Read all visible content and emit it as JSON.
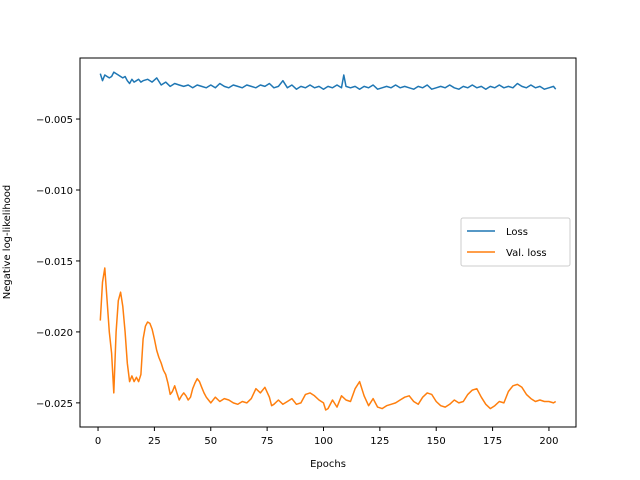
{
  "chart_data": {
    "type": "line",
    "title": "",
    "xlabel": "Epochs",
    "ylabel": "Negative log-likelihood",
    "xlim": [
      -8,
      212
    ],
    "ylim": [
      -0.0267,
      -0.0007
    ],
    "xticks": [
      0,
      25,
      50,
      75,
      100,
      125,
      150,
      175,
      200
    ],
    "yticks": [
      -0.005,
      -0.01,
      -0.015,
      -0.02,
      -0.025
    ],
    "ytick_labels": [
      "−0.005",
      "−0.010",
      "−0.015",
      "−0.020",
      "−0.025"
    ],
    "grid": false,
    "legend_position": "center-right",
    "series": [
      {
        "name": "Loss",
        "color": "#1f77b4",
        "x": [
          1,
          2,
          3,
          4,
          5,
          6,
          7,
          8,
          9,
          10,
          11,
          12,
          13,
          14,
          15,
          16,
          17,
          18,
          19,
          20,
          22,
          24,
          26,
          28,
          30,
          32,
          34,
          36,
          38,
          40,
          42,
          44,
          46,
          48,
          50,
          52,
          54,
          56,
          58,
          60,
          62,
          64,
          66,
          68,
          70,
          72,
          74,
          76,
          78,
          80,
          82,
          84,
          86,
          88,
          90,
          92,
          94,
          96,
          98,
          100,
          102,
          104,
          106,
          108,
          109,
          110,
          112,
          114,
          116,
          118,
          120,
          122,
          124,
          126,
          128,
          130,
          132,
          134,
          136,
          138,
          140,
          142,
          144,
          146,
          148,
          150,
          152,
          154,
          156,
          158,
          160,
          162,
          164,
          166,
          168,
          170,
          172,
          174,
          176,
          178,
          180,
          182,
          184,
          186,
          188,
          190,
          192,
          194,
          196,
          198,
          200,
          202,
          203
        ],
        "y": [
          -0.0018,
          -0.0023,
          -0.0019,
          -0.002,
          -0.0021,
          -0.002,
          -0.0017,
          -0.0018,
          -0.0019,
          -0.002,
          -0.0021,
          -0.002,
          -0.0023,
          -0.0025,
          -0.0022,
          -0.0024,
          -0.0023,
          -0.0022,
          -0.0024,
          -0.0023,
          -0.0022,
          -0.0024,
          -0.0021,
          -0.0026,
          -0.0024,
          -0.0027,
          -0.0025,
          -0.0026,
          -0.0027,
          -0.0026,
          -0.0028,
          -0.0026,
          -0.0027,
          -0.0028,
          -0.0026,
          -0.0028,
          -0.0025,
          -0.0027,
          -0.0028,
          -0.0026,
          -0.0027,
          -0.0028,
          -0.0026,
          -0.0027,
          -0.0028,
          -0.0026,
          -0.0027,
          -0.0025,
          -0.0028,
          -0.0027,
          -0.0023,
          -0.0028,
          -0.0026,
          -0.0029,
          -0.0027,
          -0.0028,
          -0.0026,
          -0.0028,
          -0.0027,
          -0.0029,
          -0.0027,
          -0.0028,
          -0.0026,
          -0.0028,
          -0.0019,
          -0.0027,
          -0.0028,
          -0.0027,
          -0.0029,
          -0.0027,
          -0.0028,
          -0.0026,
          -0.0029,
          -0.0028,
          -0.0027,
          -0.0028,
          -0.0026,
          -0.0028,
          -0.0027,
          -0.0028,
          -0.0029,
          -0.0027,
          -0.0028,
          -0.0026,
          -0.0029,
          -0.0028,
          -0.0027,
          -0.0028,
          -0.0026,
          -0.0028,
          -0.0029,
          -0.0027,
          -0.0028,
          -0.0026,
          -0.0028,
          -0.0027,
          -0.0029,
          -0.0027,
          -0.0028,
          -0.0026,
          -0.0028,
          -0.0027,
          -0.0028,
          -0.0025,
          -0.0027,
          -0.0028,
          -0.0026,
          -0.0028,
          -0.0027,
          -0.0029,
          -0.0028,
          -0.0027,
          -0.0029
        ]
      },
      {
        "name": "Val. loss",
        "color": "#ff7f0e",
        "x": [
          1,
          2,
          3,
          4,
          5,
          6,
          7,
          8,
          9,
          10,
          11,
          12,
          13,
          14,
          15,
          16,
          17,
          18,
          19,
          20,
          21,
          22,
          23,
          24,
          25,
          26,
          27,
          28,
          29,
          30,
          31,
          32,
          33,
          34,
          35,
          36,
          37,
          38,
          39,
          40,
          41,
          42,
          43,
          44,
          45,
          46,
          47,
          48,
          49,
          50,
          52,
          54,
          56,
          58,
          60,
          62,
          64,
          66,
          68,
          70,
          72,
          74,
          76,
          77,
          78,
          80,
          82,
          84,
          86,
          88,
          90,
          92,
          94,
          96,
          98,
          100,
          101,
          102,
          104,
          106,
          108,
          110,
          112,
          114,
          116,
          118,
          120,
          122,
          124,
          126,
          128,
          130,
          132,
          134,
          136,
          138,
          140,
          142,
          144,
          146,
          148,
          150,
          152,
          154,
          156,
          158,
          160,
          162,
          164,
          166,
          168,
          170,
          172,
          174,
          176,
          178,
          180,
          182,
          184,
          186,
          188,
          190,
          192,
          194,
          196,
          198,
          200,
          202,
          203
        ],
        "y": [
          -0.0192,
          -0.0165,
          -0.0155,
          -0.0178,
          -0.02,
          -0.0215,
          -0.0243,
          -0.02,
          -0.0178,
          -0.0172,
          -0.0182,
          -0.02,
          -0.0222,
          -0.0235,
          -0.0231,
          -0.0235,
          -0.0232,
          -0.0235,
          -0.023,
          -0.0205,
          -0.0196,
          -0.0193,
          -0.0194,
          -0.0198,
          -0.0205,
          -0.0213,
          -0.0218,
          -0.0222,
          -0.0227,
          -0.023,
          -0.0236,
          -0.0244,
          -0.0242,
          -0.0238,
          -0.0243,
          -0.0248,
          -0.0245,
          -0.0243,
          -0.0245,
          -0.0248,
          -0.0246,
          -0.024,
          -0.0236,
          -0.0233,
          -0.0235,
          -0.0239,
          -0.0243,
          -0.0246,
          -0.0248,
          -0.025,
          -0.0246,
          -0.0249,
          -0.0247,
          -0.0248,
          -0.025,
          -0.0251,
          -0.0249,
          -0.025,
          -0.0247,
          -0.024,
          -0.0243,
          -0.0239,
          -0.0246,
          -0.0252,
          -0.0251,
          -0.0248,
          -0.0251,
          -0.0249,
          -0.0247,
          -0.0251,
          -0.025,
          -0.0244,
          -0.0243,
          -0.0245,
          -0.0248,
          -0.025,
          -0.0255,
          -0.0254,
          -0.0248,
          -0.0253,
          -0.0245,
          -0.0248,
          -0.0249,
          -0.024,
          -0.0235,
          -0.0245,
          -0.0252,
          -0.0247,
          -0.0253,
          -0.0254,
          -0.0252,
          -0.0251,
          -0.025,
          -0.0248,
          -0.0246,
          -0.0245,
          -0.0249,
          -0.0251,
          -0.0246,
          -0.0243,
          -0.0244,
          -0.0249,
          -0.0252,
          -0.0253,
          -0.0251,
          -0.0248,
          -0.025,
          -0.0249,
          -0.0244,
          -0.0241,
          -0.024,
          -0.0246,
          -0.0251,
          -0.0254,
          -0.0252,
          -0.0249,
          -0.025,
          -0.0242,
          -0.0238,
          -0.0237,
          -0.0239,
          -0.0244,
          -0.0247,
          -0.0249,
          -0.0248,
          -0.0249,
          -0.0249,
          -0.025,
          -0.0249
        ]
      }
    ]
  }
}
